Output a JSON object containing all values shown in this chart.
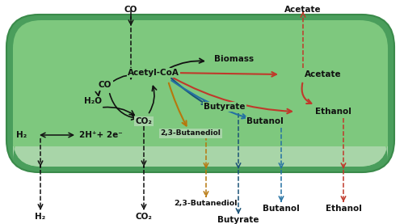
{
  "fig_width": 5.0,
  "fig_height": 2.77,
  "dpi": 100,
  "bg_color": "#ffffff",
  "colors": {
    "black": "#111111",
    "red": "#c0392b",
    "blue": "#2471a3",
    "dark_blue": "#1a5276",
    "gold": "#b7770d",
    "cell_outer": "#4a9e5c",
    "cell_inner": "#7ec87e",
    "cell_band": "#a8d5a8"
  },
  "labels": {
    "CO_top": "CO",
    "Acetate_top": "Acetate",
    "Acetyl_CoA": "Acetyl-CoA",
    "Biomass": "Biomass",
    "Acetate_inner": "Acetate",
    "CO_inner": "CO",
    "H2O": "H₂O",
    "CO2_inner": "CO₂",
    "H2_left": "H₂",
    "H2_right": "2H⁺+ 2e⁻",
    "H2_bottom": "H₂",
    "CO2_bottom": "CO₂",
    "Butanediol_inner": "2,3-Butanediol",
    "Butanediol_bottom": "2,3-Butanediol",
    "Butyrate_inner": "Butyrate",
    "Butyrate_bottom": "Butyrate",
    "Butanol_inner": "Butanol",
    "Butanol_bottom": "Butanol",
    "Ethanol_inner": "Ethanol",
    "Ethanol_bottom": "Ethanol"
  }
}
